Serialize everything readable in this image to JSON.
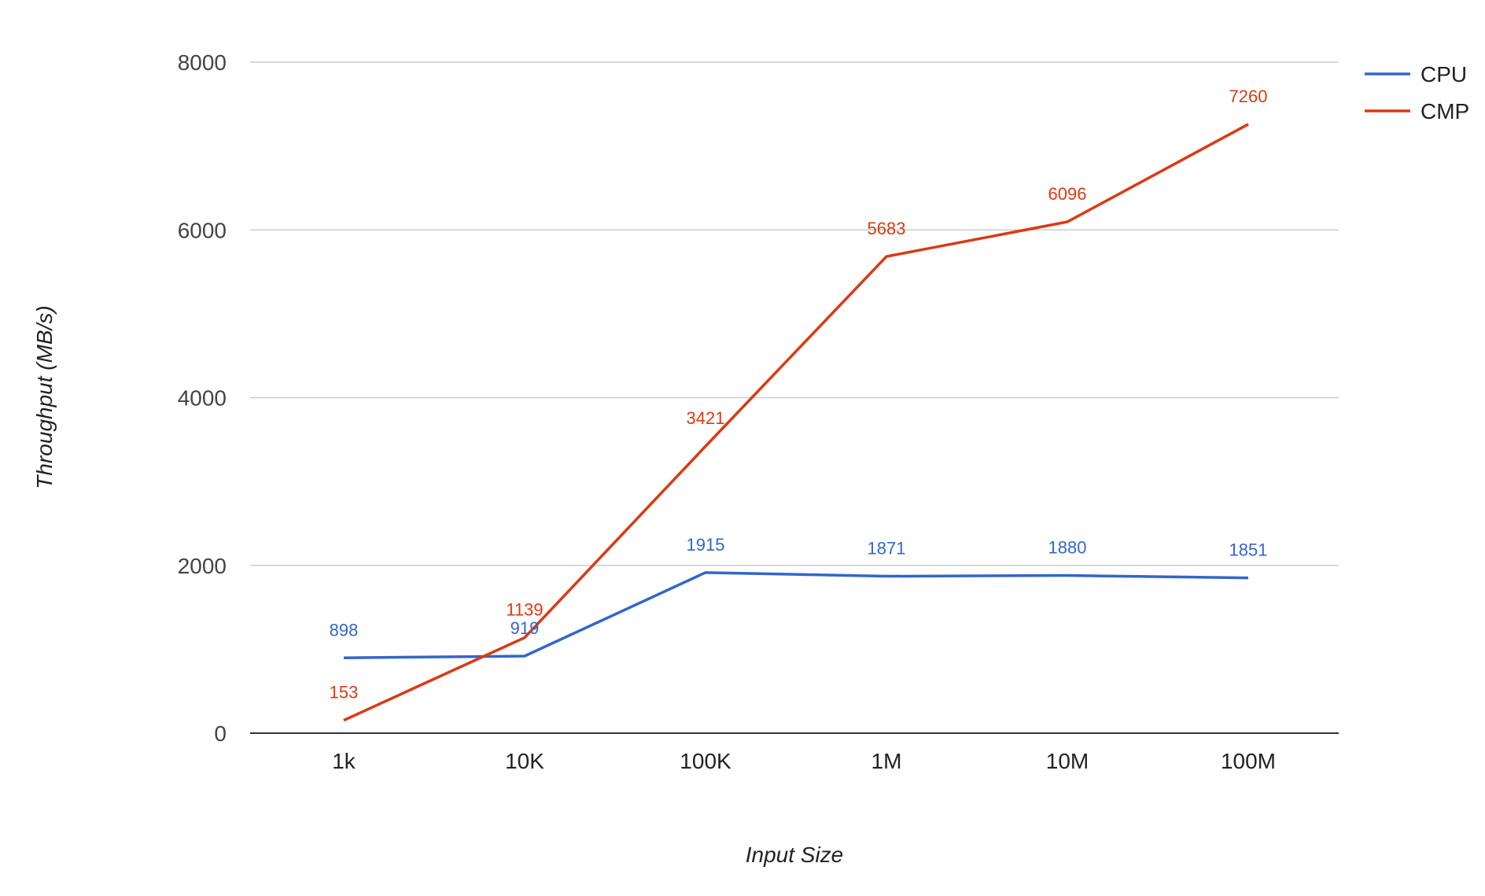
{
  "chart_data": {
    "type": "line",
    "categories": [
      "1k",
      "10K",
      "100K",
      "1M",
      "10M",
      "100M"
    ],
    "series": [
      {
        "name": "CPU",
        "color": "#3366cc",
        "values": [
          898,
          919,
          1915,
          1871,
          1880,
          1851
        ],
        "data_labels": [
          "898",
          "919",
          "1915",
          "1871",
          "1880",
          "1851"
        ]
      },
      {
        "name": "CMP",
        "color": "#dc3912",
        "values": [
          153,
          1139,
          3421,
          5683,
          6096,
          7260
        ],
        "data_labels": [
          "153",
          "1139",
          "3421",
          "5683",
          "6096",
          "7260"
        ]
      }
    ],
    "xlabel": "Input Size",
    "ylabel": "Throughput (MB/s)",
    "ylim": [
      0,
      8000
    ],
    "yticks": [
      0,
      2000,
      4000,
      6000,
      8000
    ],
    "ytick_labels": [
      "0",
      "2000",
      "4000",
      "6000",
      "8000"
    ],
    "grid": true,
    "legend_position": "right"
  }
}
